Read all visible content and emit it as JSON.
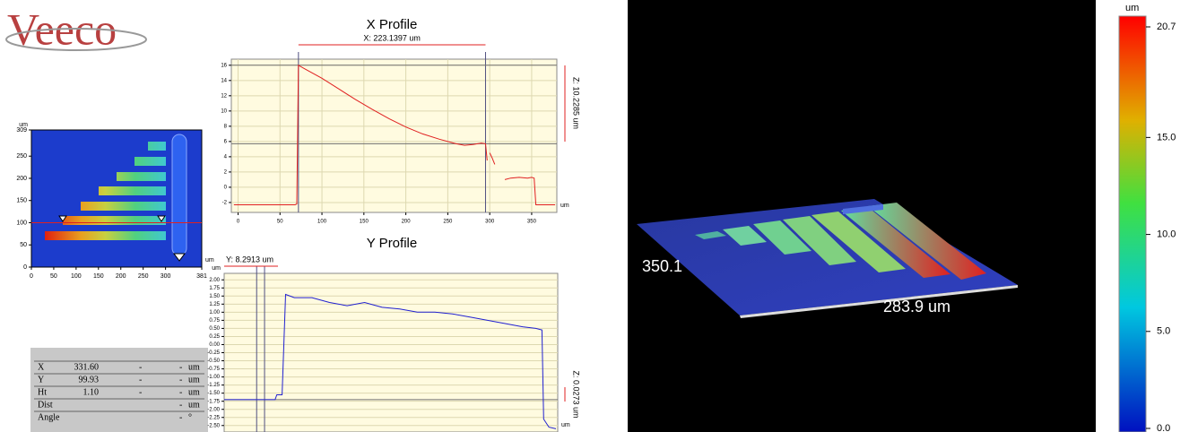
{
  "logo": "Veeco",
  "chart_data": [
    {
      "type": "image",
      "y_unit": "um",
      "x_unit": "um",
      "xlim": [
        0,
        381
      ],
      "ylim": [
        0,
        309
      ],
      "xticks": [
        0,
        50,
        100,
        150,
        200,
        250,
        300,
        381
      ],
      "yticks": [
        0,
        50,
        100,
        150,
        200,
        250,
        309
      ],
      "cursor_y": [
        100
      ]
    },
    {
      "type": "line",
      "title": "X Profile",
      "x_unit": "um",
      "xlim": [
        -8,
        380
      ],
      "ylim": [
        -3.3,
        16.8
      ],
      "xticks": [
        0,
        50,
        100,
        150,
        200,
        250,
        300,
        350
      ],
      "yticks": [
        -2,
        0,
        2,
        4,
        6,
        8,
        10,
        12,
        14,
        16
      ],
      "color": "#e02020",
      "background": "#fffbe0",
      "grid": true,
      "x": [
        -5,
        20,
        50,
        68,
        70,
        72,
        80,
        100,
        120,
        140,
        160,
        180,
        200,
        220,
        240,
        260,
        270,
        280,
        290,
        295,
        297,
        298,
        300,
        303,
        306,
        310,
        318,
        325,
        335,
        345,
        350,
        353,
        355,
        365,
        378
      ],
      "y": [
        -2.3,
        -2.3,
        -2.3,
        -2.3,
        -2.2,
        16,
        15.5,
        14.3,
        12.9,
        11.5,
        10.2,
        9,
        7.9,
        7,
        6.3,
        5.7,
        5.5,
        5.6,
        5.8,
        5.7,
        3.5,
        null,
        4.5,
        3.8,
        3,
        null,
        1,
        1.2,
        1.3,
        1.2,
        1.3,
        1.2,
        -2.3,
        -2.3,
        -2.3
      ],
      "cursor_x": [
        72,
        295
      ],
      "cursor_y": [
        16,
        5.7
      ],
      "annotation": "X: 223.1397 um",
      "z_annotation": "Z: 10.2285 um"
    },
    {
      "type": "line",
      "title": "Y Profile",
      "y_unit": "um",
      "x_unit": "um",
      "xlim": [
        0,
        380
      ],
      "ylim": [
        -2.7,
        2.2
      ],
      "color": "#2020d0",
      "background": "#fffbe0",
      "grid": true,
      "yticks": [
        {
          "value": 2,
          "label": "2.00"
        },
        {
          "value": 1.75,
          "label": "1.75"
        },
        {
          "value": 1.5,
          "label": "1.50"
        },
        {
          "value": 1.25,
          "label": "1.25"
        },
        {
          "value": 1,
          "label": "1.00"
        },
        {
          "value": 0.75,
          "label": "0.75"
        },
        {
          "value": 0.5,
          "label": "0.50"
        },
        {
          "value": 0.25,
          "label": "0.25"
        },
        {
          "value": 0,
          "label": "0.00"
        },
        {
          "value": -0.25,
          "label": "-0.25"
        },
        {
          "value": -0.5,
          "label": "-0.50"
        },
        {
          "value": -0.75,
          "label": "-0.75"
        },
        {
          "value": -1,
          "label": "-1.00"
        },
        {
          "value": -1.25,
          "label": "-1.25"
        },
        {
          "value": -1.5,
          "label": "-1.50"
        },
        {
          "value": -1.75,
          "label": "-1.75"
        },
        {
          "value": -2,
          "label": "-2.00"
        },
        {
          "value": -2.25,
          "label": "-2.25"
        },
        {
          "value": -2.5,
          "label": "-2.50"
        }
      ],
      "x": [
        0,
        58,
        60,
        66,
        70,
        80,
        100,
        120,
        140,
        160,
        180,
        200,
        220,
        240,
        260,
        280,
        300,
        320,
        340,
        355,
        362,
        364,
        370,
        378
      ],
      "y": [
        -1.7,
        -1.7,
        -1.55,
        -1.55,
        1.55,
        1.45,
        1.45,
        1.3,
        1.2,
        1.3,
        1.15,
        1.1,
        1.0,
        1.0,
        0.95,
        0.85,
        0.75,
        0.65,
        0.55,
        0.5,
        0.45,
        -2.3,
        -2.55,
        -2.6
      ],
      "cursor_x": [
        37,
        46
      ],
      "cursor_y": [
        -1.7
      ],
      "annotation": "Y: 8.2913 um",
      "z_annotation": "Z: 0.0273 um"
    },
    {
      "type": "colorbar",
      "y_unit": "um",
      "ylim": [
        0,
        20.7
      ],
      "yticks": [
        20.7,
        {
          "value": 15,
          "label": "15.0"
        },
        {
          "value": 10,
          "label": "10.0"
        },
        {
          "value": 5,
          "label": "5.0"
        },
        {
          "value": 0,
          "label": "0.0"
        }
      ]
    }
  ],
  "readout": {
    "rows": [
      {
        "label": "X",
        "value": "331.60",
        "dashes": [
          "-",
          "-"
        ],
        "unit": "um"
      },
      {
        "label": "Y",
        "value": "99.93",
        "dashes": [
          "-",
          "-"
        ],
        "unit": "um"
      },
      {
        "label": "Ht",
        "value": "1.10",
        "dashes": [
          "-",
          "-"
        ],
        "unit": "um"
      },
      {
        "label": "Dist",
        "dashes": [
          "-"
        ],
        "unit": "um"
      },
      {
        "label": "Angle",
        "dashes": [
          "-"
        ],
        "unit": "°"
      }
    ]
  },
  "view3d": {
    "width_label": "350.1",
    "length_label": "283.9 um"
  }
}
